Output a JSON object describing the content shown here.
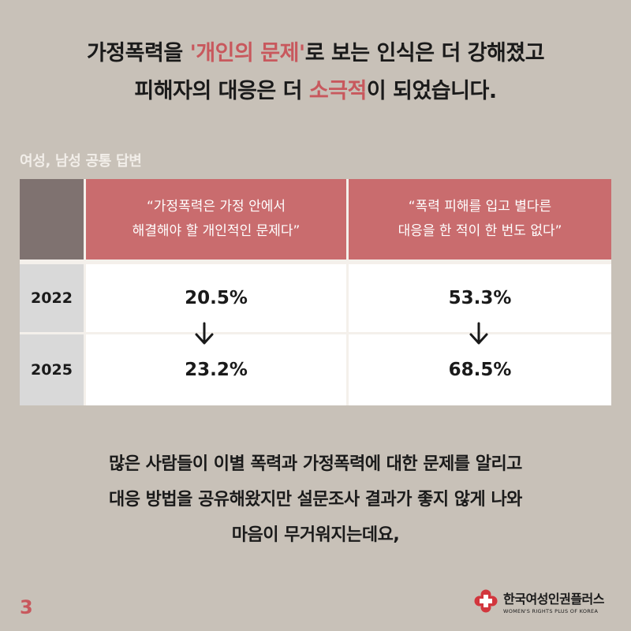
{
  "headline": {
    "line1_pre": "가정폭력을 ",
    "line1_hl": "'개인의 문제'",
    "line1_post": "로 보는 인식은 더 강해졌고",
    "line2_pre": "피해자의 대응은 더 ",
    "line2_hl": "소극적",
    "line2_post": "이 되었습니다."
  },
  "subtitle": "여성, 남성 공통 답변",
  "table": {
    "columns": [
      {
        "line1": "“가정폭력은 가정 안에서",
        "line2": "해결해야 할 개인적인 문제다”"
      },
      {
        "line1": "“폭력 피해를 입고 별다른",
        "line2": "대응을 한 적이 한 번도 없다”"
      }
    ],
    "rows": [
      {
        "year": "2022",
        "values": [
          "20.5%",
          "53.3%"
        ]
      },
      {
        "year": "2025",
        "values": [
          "23.2%",
          "68.5%"
        ]
      }
    ]
  },
  "body": {
    "line1": "많은 사람들이 이별 폭력과 가정폭력에 대한 문제를 알리고",
    "line2": "대응 방법을 공유해왔지만 설문조사 결과가 좋지 않게 나와",
    "line3": "마음이 무거워지는데요,"
  },
  "page_number": "3",
  "logo": {
    "name_kr": "한국여성인권플러스",
    "name_en": "WOMEN'S RIGHTS PLUS OF KOREA",
    "icon": "flower-cross-logo"
  },
  "colors": {
    "background": "#c8c1b8",
    "accent": "#c8585d",
    "header": "#c96c6e",
    "corner": "#7f7270"
  }
}
